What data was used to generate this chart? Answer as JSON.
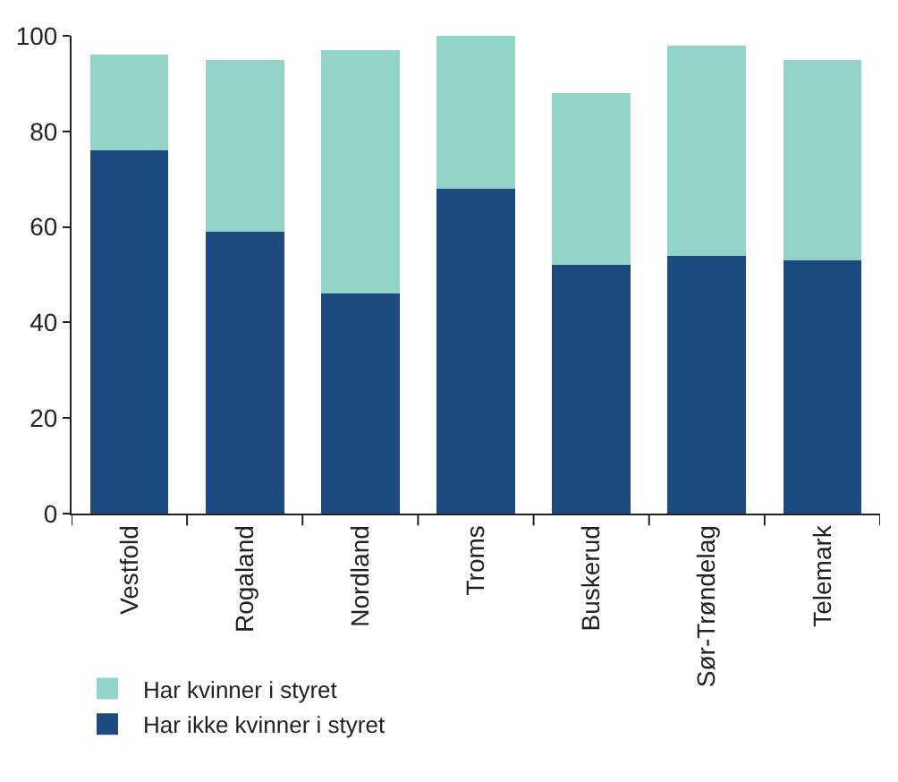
{
  "chart_data": {
    "type": "bar",
    "stacked": true,
    "categories": [
      "Vestfold",
      "Rogaland",
      "Nordland",
      "Troms",
      "Buskerud",
      "Sør-Trøndelag",
      "Telemark"
    ],
    "series": [
      {
        "name": "Har ikke kvinner i styret",
        "color": "#1d4b80",
        "values": [
          76,
          59,
          46,
          68,
          52,
          54,
          53
        ]
      },
      {
        "name": "Har kvinner i styret",
        "color": "#93d4c8",
        "values": [
          20,
          36,
          51,
          32,
          36,
          44,
          42
        ]
      }
    ],
    "ylim": [
      0,
      100
    ],
    "yticks": [
      0,
      20,
      40,
      60,
      80,
      100
    ],
    "legend": "bottom left"
  }
}
